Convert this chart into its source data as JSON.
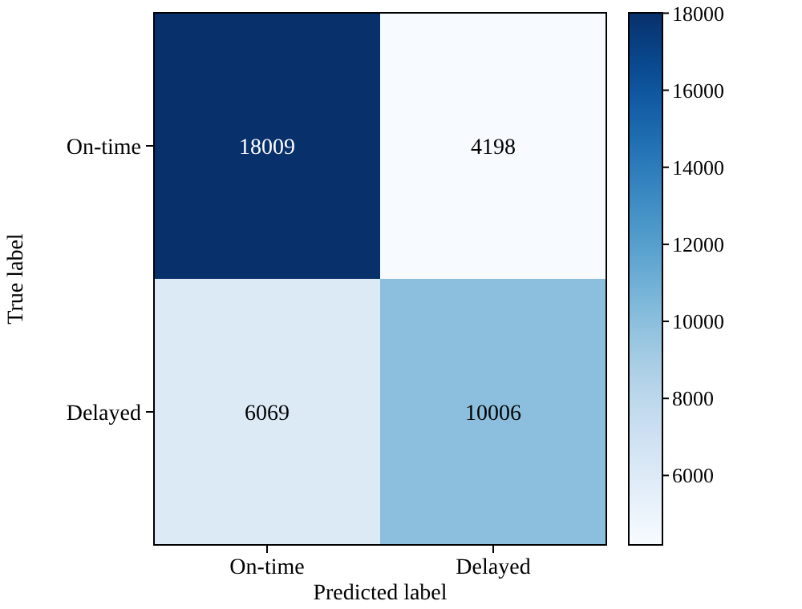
{
  "chart_data": {
    "type": "heatmap",
    "xlabel": "Predicted label",
    "ylabel": "True label",
    "categories": [
      "On-time",
      "Delayed"
    ],
    "y_categories": [
      "On-time",
      "Delayed"
    ],
    "cells": [
      [
        18009,
        4198
      ],
      [
        6069,
        10006
      ]
    ],
    "data_labels": true,
    "clim": [
      4198,
      18009
    ],
    "cticks": [
      6000,
      8000,
      10000,
      12000,
      14000,
      16000,
      18000
    ]
  }
}
